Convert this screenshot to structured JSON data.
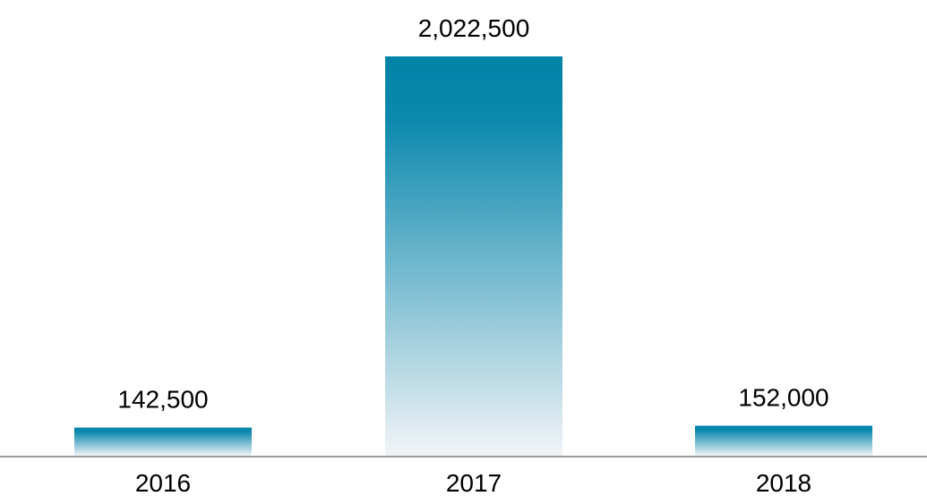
{
  "chart_data": {
    "type": "bar",
    "categories": [
      "2016",
      "2017",
      "2018"
    ],
    "values": [
      142500,
      2022500,
      152000
    ],
    "value_labels": [
      "142,500",
      "2,022,500",
      "152,000"
    ],
    "ylim": [
      0,
      2022500
    ],
    "grid": false,
    "legend": "none",
    "colors": {
      "bar_top": "#0083a8",
      "bar_bottom": "#f2f4f7",
      "baseline": "#999999",
      "text": "#000000"
    }
  }
}
